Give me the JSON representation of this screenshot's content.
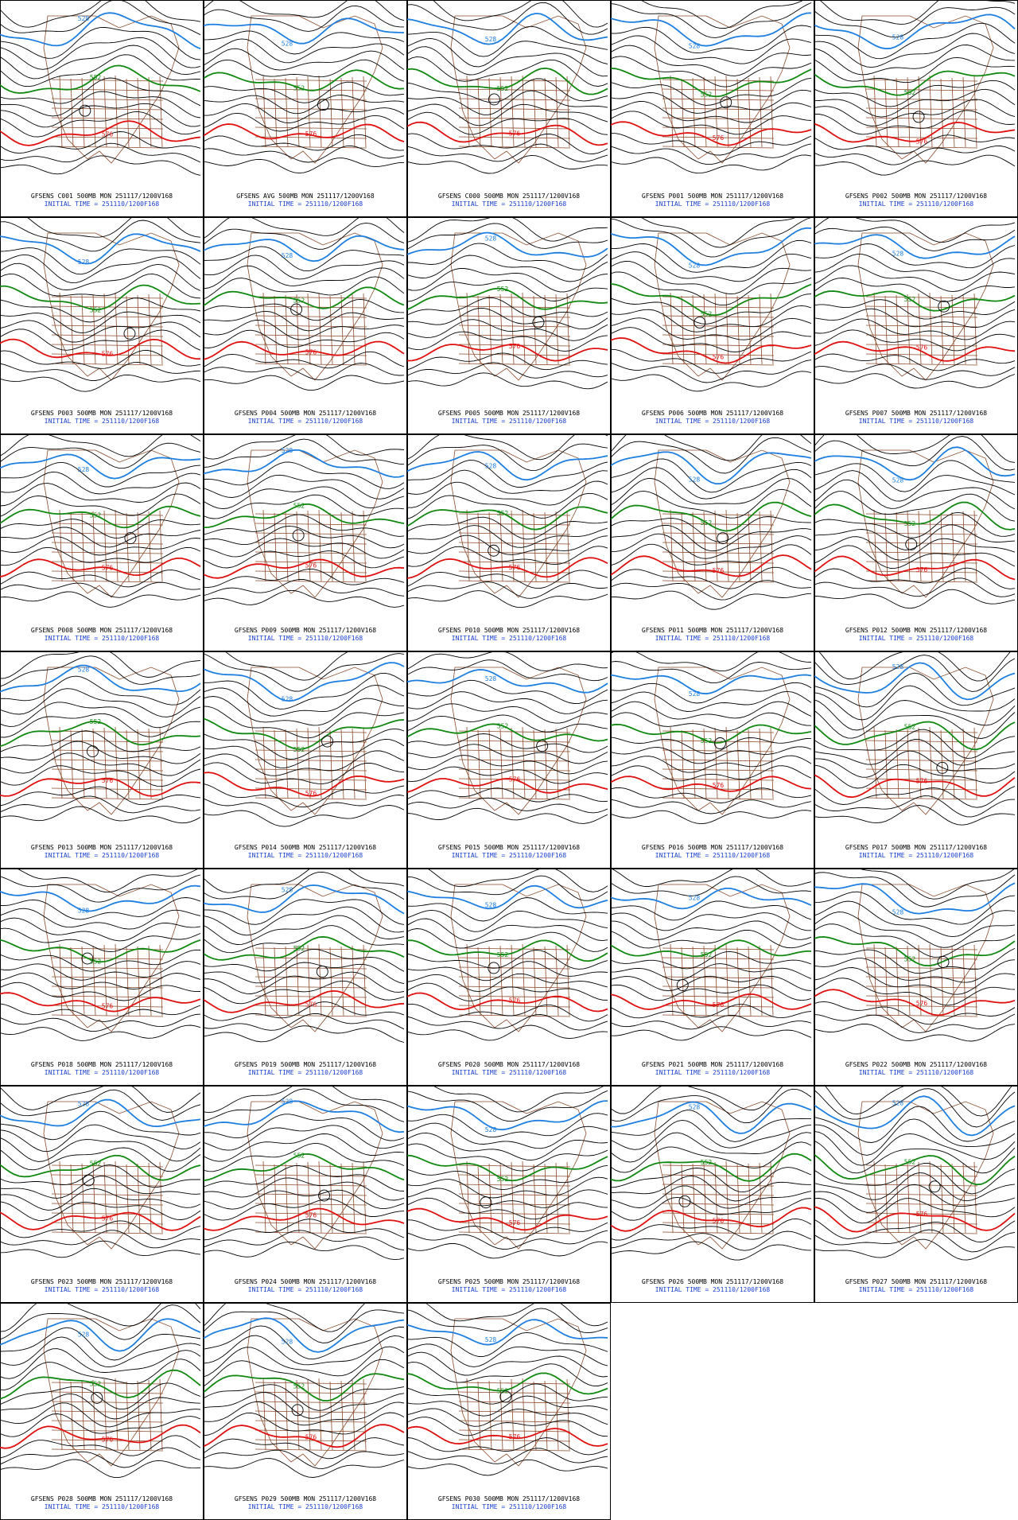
{
  "panels": [
    {
      "title": "GFSENS C001 500MB MON 251117/1200V168",
      "initial_time": "INITIAL TIME = 251110/1200F168",
      "contour_labels": [
        "528",
        "552",
        "576"
      ]
    },
    {
      "title": "GFSENS AVG 500MB MON 251117/1200V168",
      "initial_time": "INITIAL TIME = 251110/1200F168",
      "contour_labels": [
        "528",
        "552",
        "576"
      ]
    },
    {
      "title": "GFSENS C000 500MB MON 251117/1200V168",
      "initial_time": "INITIAL TIME = 251110/1200F168",
      "contour_labels": [
        "528",
        "552",
        "576"
      ]
    },
    {
      "title": "GFSENS P001 500MB MON 251117/1200V168",
      "initial_time": "INITIAL TIME = 251110/1200F168",
      "contour_labels": [
        "528",
        "552",
        "576"
      ]
    },
    {
      "title": "GFSENS P002 500MB MON 251117/1200V168",
      "initial_time": "INITIAL TIME = 251110/1200F168",
      "contour_labels": [
        "528",
        "552",
        "576"
      ]
    },
    {
      "title": "GFSENS P003 500MB MON 251117/1200V168",
      "initial_time": "INITIAL TIME = 251110/1200F168",
      "contour_labels": [
        "528",
        "552",
        "576"
      ]
    },
    {
      "title": "GFSENS P004 500MB MON 251117/1200V168",
      "initial_time": "INITIAL TIME = 251110/1200F168",
      "contour_labels": [
        "528",
        "552",
        "576"
      ]
    },
    {
      "title": "GFSENS P005 500MB MON 251117/1200V168",
      "initial_time": "INITIAL TIME = 251110/1200F168",
      "contour_labels": [
        "528",
        "552",
        "576"
      ]
    },
    {
      "title": "GFSENS P006 500MB MON 251117/1200V168",
      "initial_time": "INITIAL TIME = 251110/1200F168",
      "contour_labels": [
        "528",
        "552",
        "576"
      ]
    },
    {
      "title": "GFSENS P007 500MB MON 251117/1200V168",
      "initial_time": "INITIAL TIME = 251110/1200F168",
      "contour_labels": [
        "528",
        "552",
        "576"
      ]
    },
    {
      "title": "GFSENS P008 500MB MON 251117/1200V168",
      "initial_time": "INITIAL TIME = 251110/1200F168",
      "contour_labels": [
        "528",
        "552",
        "576"
      ]
    },
    {
      "title": "GFSENS P009 500MB MON 251117/1200V168",
      "initial_time": "INITIAL TIME = 251110/1200F168",
      "contour_labels": [
        "528",
        "552",
        "576"
      ]
    },
    {
      "title": "GFSENS P010 500MB MON 251117/1200V168",
      "initial_time": "INITIAL TIME = 251110/1200F168",
      "contour_labels": [
        "528",
        "552",
        "576"
      ]
    },
    {
      "title": "GFSENS P011 500MB MON 251117/1200V168",
      "initial_time": "INITIAL TIME = 251110/1200F168",
      "contour_labels": [
        "528",
        "552",
        "576"
      ]
    },
    {
      "title": "GFSENS P012 500MB MON 251117/1200V168",
      "initial_time": "INITIAL TIME = 251110/1200F168",
      "contour_labels": [
        "528",
        "552",
        "576"
      ]
    },
    {
      "title": "GFSENS P013 500MB MON 251117/1200V168",
      "initial_time": "INITIAL TIME = 251110/1200F168",
      "contour_labels": [
        "528",
        "552",
        "576"
      ]
    },
    {
      "title": "GFSENS P014 500MB MON 251117/1200V168",
      "initial_time": "INITIAL TIME = 251110/1200F168",
      "contour_labels": [
        "528",
        "552",
        "576"
      ]
    },
    {
      "title": "GFSENS P015 500MB MON 251117/1200V168",
      "initial_time": "INITIAL TIME = 251110/1200F168",
      "contour_labels": [
        "528",
        "552",
        "576"
      ]
    },
    {
      "title": "GFSENS P016 500MB MON 251117/1200V168",
      "initial_time": "INITIAL TIME = 251110/1200F168",
      "contour_labels": [
        "528",
        "552",
        "576"
      ]
    },
    {
      "title": "GFSENS P017 500MB MON 251117/1200V168",
      "initial_time": "INITIAL TIME = 251110/1200F168",
      "contour_labels": [
        "528",
        "552",
        "576"
      ]
    },
    {
      "title": "GFSENS P018 500MB MON 251117/1200V168",
      "initial_time": "INITIAL TIME = 251110/1200F168",
      "contour_labels": [
        "528",
        "552",
        "576"
      ]
    },
    {
      "title": "GFSENS P019 500MB MON 251117/1200V168",
      "initial_time": "INITIAL TIME = 251110/1200F168",
      "contour_labels": [
        "528",
        "552",
        "576"
      ]
    },
    {
      "title": "GFSENS P020 500MB MON 251117/1200V168",
      "initial_time": "INITIAL TIME = 251110/1200F168",
      "contour_labels": [
        "528",
        "552",
        "576"
      ]
    },
    {
      "title": "GFSENS P021 500MB MON 251117/1200V168",
      "initial_time": "INITIAL TIME = 251110/1200F168",
      "contour_labels": [
        "528",
        "552",
        "576"
      ]
    },
    {
      "title": "GFSENS P022 500MB MON 251117/1200V168",
      "initial_time": "INITIAL TIME = 251110/1200F168",
      "contour_labels": [
        "528",
        "552",
        "576"
      ]
    },
    {
      "title": "GFSENS P023 500MB MON 251117/1200V168",
      "initial_time": "INITIAL TIME = 251110/1200F168",
      "contour_labels": [
        "528",
        "552",
        "576"
      ]
    },
    {
      "title": "GFSENS P024 500MB MON 251117/1200V168",
      "initial_time": "INITIAL TIME = 251110/1200F168",
      "contour_labels": [
        "528",
        "552",
        "576"
      ]
    },
    {
      "title": "GFSENS P025 500MB MON 251117/1200V168",
      "initial_time": "INITIAL TIME = 251110/1200F168",
      "contour_labels": [
        "528",
        "552",
        "576"
      ]
    },
    {
      "title": "GFSENS P026 500MB MON 251117/1200V168",
      "initial_time": "INITIAL TIME = 251110/1200F168",
      "contour_labels": [
        "528",
        "552",
        "576"
      ]
    },
    {
      "title": "GFSENS P027 500MB MON 251117/1200V168",
      "initial_time": "INITIAL TIME = 251110/1200F168",
      "contour_labels": [
        "528",
        "552",
        "576"
      ]
    },
    {
      "title": "GFSENS P028 500MB MON 251117/1200V168",
      "initial_time": "INITIAL TIME = 251110/1200F168",
      "contour_labels": [
        "528",
        "552",
        "576"
      ]
    },
    {
      "title": "GFSENS P029 500MB MON 251117/1200V168",
      "initial_time": "INITIAL TIME = 251110/1200F168",
      "contour_labels": [
        "528",
        "552",
        "576"
      ]
    },
    {
      "title": "GFSENS P030 500MB MON 251117/1200V168",
      "initial_time": "INITIAL TIME = 251110/1200F168",
      "contour_labels": [
        "528",
        "552",
        "576"
      ]
    }
  ]
}
